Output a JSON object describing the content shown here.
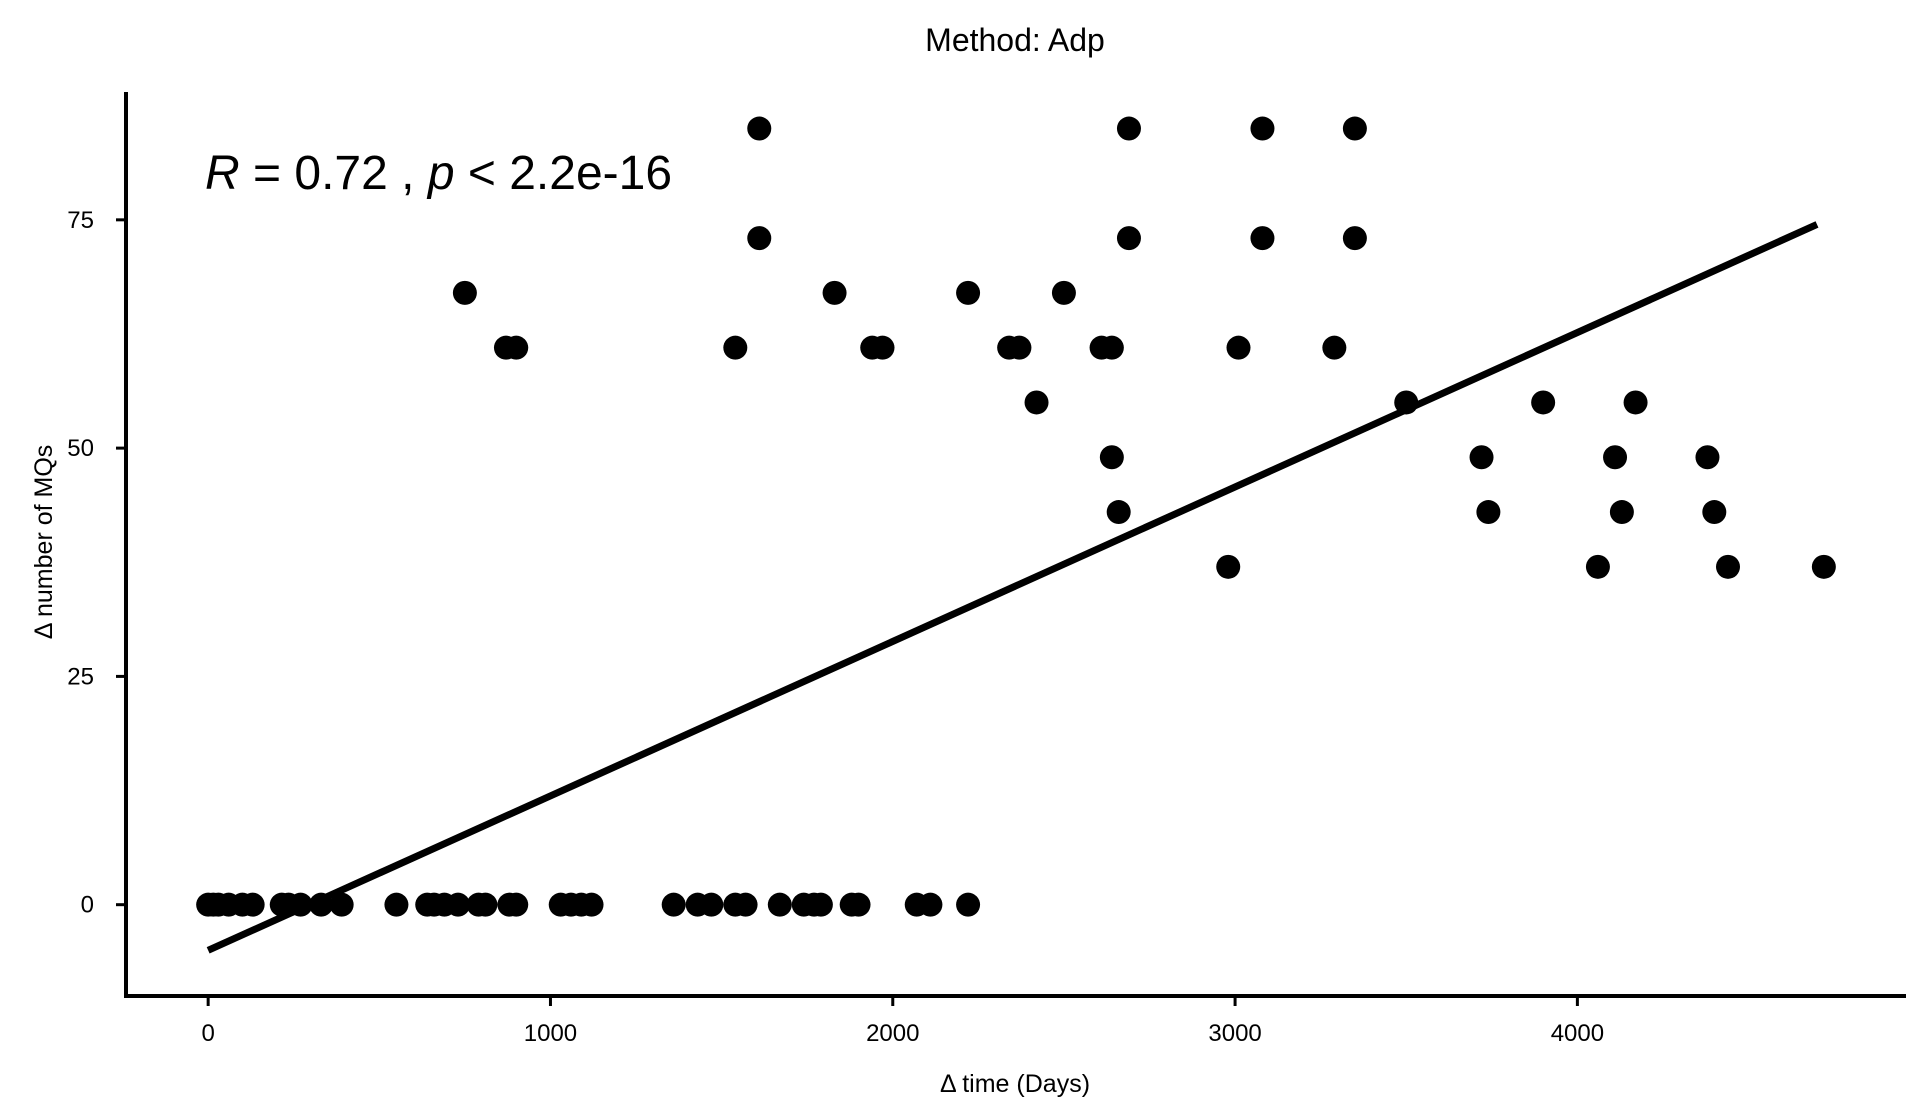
{
  "chart_data": {
    "type": "scatter",
    "title": "Method: Adp",
    "xlabel": "Δ time (Days)",
    "ylabel": "Δ number of MQs",
    "xlim": [
      -240,
      4960
    ],
    "ylim": [
      -10,
      89
    ],
    "xticks": [
      0,
      1000,
      2000,
      3000,
      4000
    ],
    "xtick_labels": [
      "0",
      "1000",
      "2000",
      "3000",
      "4000"
    ],
    "yticks": [
      0,
      25,
      50,
      75
    ],
    "ytick_labels": [
      "0",
      "25",
      "50",
      "75"
    ],
    "grid": false,
    "annotation": {
      "parts": [
        {
          "text": "R",
          "italic": true
        },
        {
          "text": " = ",
          "italic": false
        },
        {
          "text": "0.72",
          "italic": false
        },
        {
          "text": " , ",
          "italic": false
        },
        {
          "text": "p",
          "italic": true
        },
        {
          "text": " < ",
          "italic": false
        },
        {
          "text": "2.2e-16",
          "italic": false
        }
      ]
    },
    "regression_line": {
      "x": [
        0,
        4700
      ],
      "y": [
        -5,
        74.5
      ]
    },
    "points": [
      {
        "x": 0,
        "y": 0
      },
      {
        "x": 15,
        "y": 0
      },
      {
        "x": 30,
        "y": 0
      },
      {
        "x": 60,
        "y": 0
      },
      {
        "x": 100,
        "y": 0
      },
      {
        "x": 130,
        "y": 0
      },
      {
        "x": 215,
        "y": 0
      },
      {
        "x": 235,
        "y": 0
      },
      {
        "x": 270,
        "y": 0
      },
      {
        "x": 330,
        "y": 0
      },
      {
        "x": 390,
        "y": 0
      },
      {
        "x": 550,
        "y": 0
      },
      {
        "x": 640,
        "y": 0
      },
      {
        "x": 660,
        "y": 0
      },
      {
        "x": 690,
        "y": 0
      },
      {
        "x": 730,
        "y": 0
      },
      {
        "x": 790,
        "y": 0
      },
      {
        "x": 810,
        "y": 0
      },
      {
        "x": 880,
        "y": 0
      },
      {
        "x": 900,
        "y": 0
      },
      {
        "x": 1030,
        "y": 0
      },
      {
        "x": 1060,
        "y": 0
      },
      {
        "x": 1090,
        "y": 0
      },
      {
        "x": 1120,
        "y": 0
      },
      {
        "x": 1360,
        "y": 0
      },
      {
        "x": 1430,
        "y": 0
      },
      {
        "x": 1470,
        "y": 0
      },
      {
        "x": 1540,
        "y": 0
      },
      {
        "x": 1570,
        "y": 0
      },
      {
        "x": 1670,
        "y": 0
      },
      {
        "x": 1740,
        "y": 0
      },
      {
        "x": 1770,
        "y": 0
      },
      {
        "x": 1790,
        "y": 0
      },
      {
        "x": 1880,
        "y": 0
      },
      {
        "x": 1900,
        "y": 0
      },
      {
        "x": 2070,
        "y": 0
      },
      {
        "x": 2110,
        "y": 0
      },
      {
        "x": 2220,
        "y": 0
      },
      {
        "x": 750,
        "y": 67
      },
      {
        "x": 870,
        "y": 61
      },
      {
        "x": 900,
        "y": 61
      },
      {
        "x": 1540,
        "y": 61
      },
      {
        "x": 1610,
        "y": 85
      },
      {
        "x": 1610,
        "y": 73
      },
      {
        "x": 1830,
        "y": 67
      },
      {
        "x": 1940,
        "y": 61
      },
      {
        "x": 1970,
        "y": 61
      },
      {
        "x": 2220,
        "y": 67
      },
      {
        "x": 2340,
        "y": 61
      },
      {
        "x": 2370,
        "y": 61
      },
      {
        "x": 2420,
        "y": 55
      },
      {
        "x": 2500,
        "y": 67
      },
      {
        "x": 2610,
        "y": 61
      },
      {
        "x": 2640,
        "y": 61
      },
      {
        "x": 2640,
        "y": 49
      },
      {
        "x": 2660,
        "y": 43
      },
      {
        "x": 2690,
        "y": 85
      },
      {
        "x": 2690,
        "y": 73
      },
      {
        "x": 2980,
        "y": 37
      },
      {
        "x": 3010,
        "y": 61
      },
      {
        "x": 3080,
        "y": 85
      },
      {
        "x": 3080,
        "y": 73
      },
      {
        "x": 3290,
        "y": 61
      },
      {
        "x": 3350,
        "y": 85
      },
      {
        "x": 3350,
        "y": 73
      },
      {
        "x": 3500,
        "y": 55
      },
      {
        "x": 3720,
        "y": 49
      },
      {
        "x": 3740,
        "y": 43
      },
      {
        "x": 3900,
        "y": 55
      },
      {
        "x": 4060,
        "y": 37
      },
      {
        "x": 4110,
        "y": 49
      },
      {
        "x": 4130,
        "y": 43
      },
      {
        "x": 4170,
        "y": 55
      },
      {
        "x": 4380,
        "y": 49
      },
      {
        "x": 4400,
        "y": 43
      },
      {
        "x": 4440,
        "y": 37
      },
      {
        "x": 4720,
        "y": 37
      }
    ]
  }
}
